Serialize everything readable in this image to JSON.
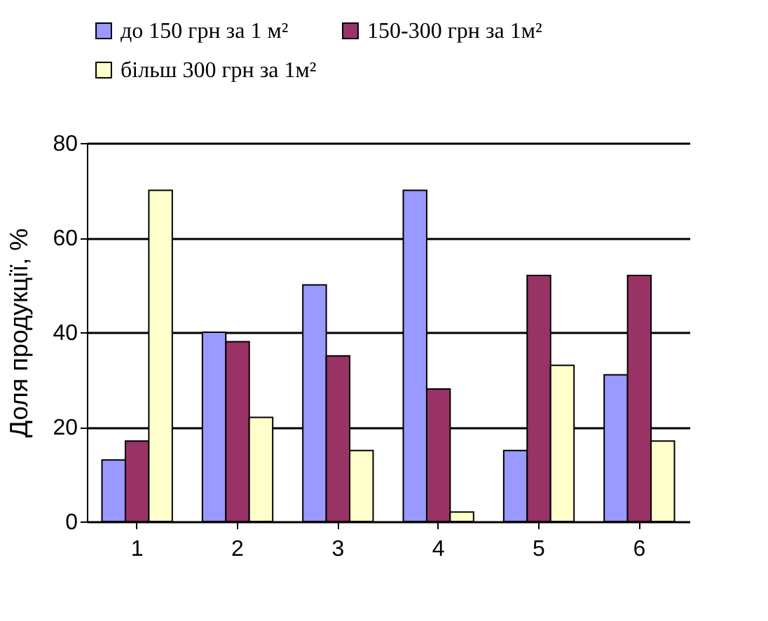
{
  "chart_data": {
    "type": "bar",
    "ylabel": "Доля продукції, %",
    "categories": [
      "1",
      "2",
      "3",
      "4",
      "5",
      "6"
    ],
    "series": [
      {
        "name": "до 150 грн  за 1 м²",
        "color": "#9999ff",
        "values": [
          13,
          40,
          50,
          70,
          15,
          31
        ]
      },
      {
        "name": "150-300 грн за 1м²",
        "color": "#993366",
        "values": [
          17,
          38,
          35,
          28,
          52,
          52
        ]
      },
      {
        "name": "більш 300 грн за 1м²",
        "color": "#ffffcc",
        "values": [
          70,
          22,
          15,
          2,
          33,
          17
        ]
      }
    ],
    "ylim": [
      0,
      80
    ],
    "yticks": [
      0,
      20,
      40,
      60,
      80
    ],
    "grid": "y",
    "legend": "top"
  }
}
